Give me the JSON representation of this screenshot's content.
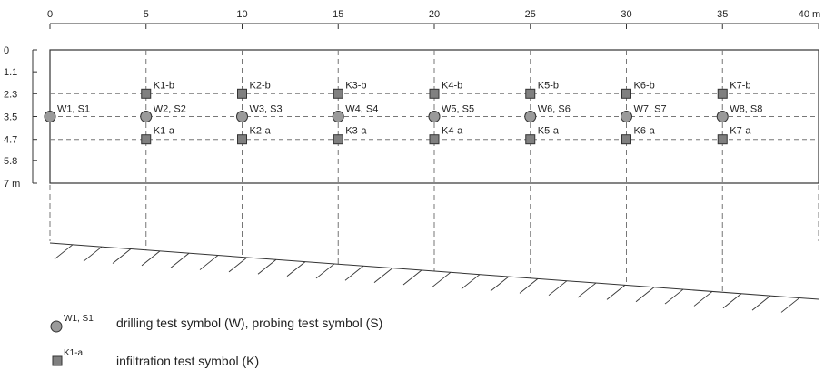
{
  "x_axis": {
    "ticks": [
      "0",
      "5",
      "10",
      "15",
      "20",
      "25",
      "30",
      "35",
      "40 m"
    ],
    "values": [
      0,
      5,
      10,
      15,
      20,
      25,
      30,
      35,
      40
    ]
  },
  "y_axis": {
    "ticks": [
      "0",
      "1.1",
      "2.3",
      "3.5",
      "4.7",
      "5.8",
      "7 m"
    ],
    "values": [
      0,
      1.15,
      2.3,
      3.5,
      4.7,
      5.8,
      7
    ]
  },
  "drilling_points": [
    {
      "label": "W1, S1",
      "x": 0,
      "y": 3.5
    },
    {
      "label": "W2, S2",
      "x": 5,
      "y": 3.5
    },
    {
      "label": "W3, S3",
      "x": 10,
      "y": 3.5
    },
    {
      "label": "W4, S4",
      "x": 15,
      "y": 3.5
    },
    {
      "label": "W5, S5",
      "x": 20,
      "y": 3.5
    },
    {
      "label": "W6, S6",
      "x": 25,
      "y": 3.5
    },
    {
      "label": "W7, S7",
      "x": 30,
      "y": 3.5
    },
    {
      "label": "W8, S8",
      "x": 35,
      "y": 3.5
    }
  ],
  "infiltration_points": [
    {
      "label": "K1-b",
      "x": 5,
      "y": 2.3
    },
    {
      "label": "K2-b",
      "x": 10,
      "y": 2.3
    },
    {
      "label": "K3-b",
      "x": 15,
      "y": 2.3
    },
    {
      "label": "K4-b",
      "x": 20,
      "y": 2.3
    },
    {
      "label": "K5-b",
      "x": 25,
      "y": 2.3
    },
    {
      "label": "K6-b",
      "x": 30,
      "y": 2.3
    },
    {
      "label": "K7-b",
      "x": 35,
      "y": 2.3
    },
    {
      "label": "K1-a",
      "x": 5,
      "y": 4.7
    },
    {
      "label": "K2-a",
      "x": 10,
      "y": 4.7
    },
    {
      "label": "K3-a",
      "x": 15,
      "y": 4.7
    },
    {
      "label": "K4-a",
      "x": 20,
      "y": 4.7
    },
    {
      "label": "K5-a",
      "x": 25,
      "y": 4.7
    },
    {
      "label": "K6-a",
      "x": 30,
      "y": 4.7
    },
    {
      "label": "K7-a",
      "x": 35,
      "y": 4.7
    }
  ],
  "legend": {
    "drilling_symbol_label": "W1, S1",
    "drilling_text": "drilling test symbol (W), probing test symbol (S)",
    "infiltration_symbol_label": "K1-a",
    "infiltration_text": "infiltration test symbol (K)"
  },
  "colors": {
    "symbol_fill": "#9a9a9a",
    "square_fill": "#808080",
    "line": "#333333",
    "dashed": "#777777"
  }
}
